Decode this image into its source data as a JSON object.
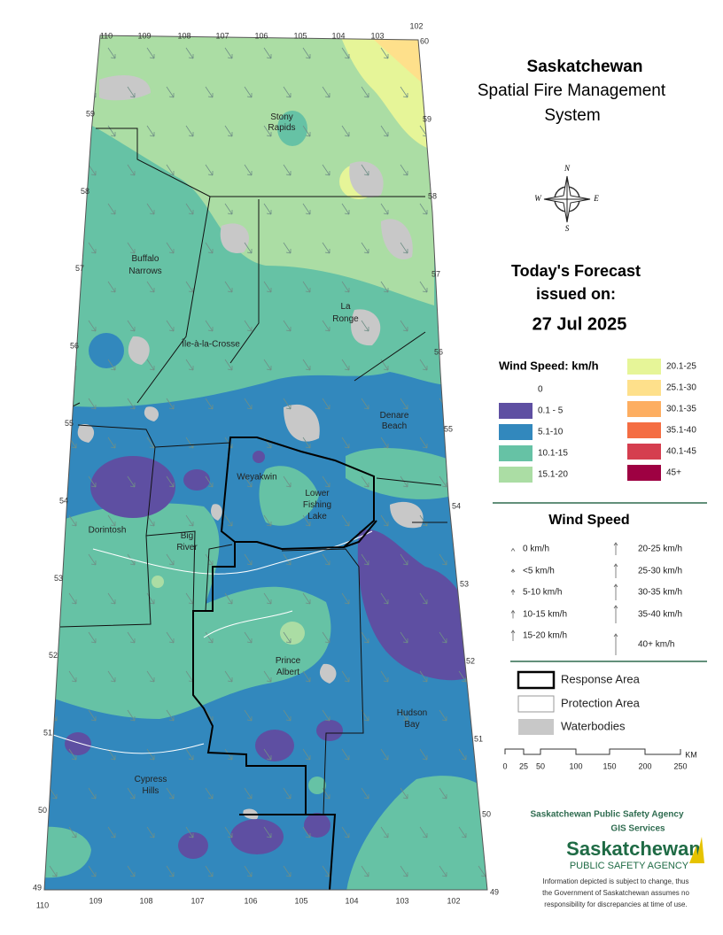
{
  "header": {
    "title": "Saskatchewan",
    "subtitle_lines": [
      "Spatial Fire Management",
      "System"
    ]
  },
  "compass": [
    "N",
    "E",
    "S",
    "W"
  ],
  "forecast": {
    "heading_lines": [
      "Today's Forecast",
      "issued on:"
    ],
    "date": "27 Jul 2025"
  },
  "wind_speed_legend": {
    "title": "Wind Speed: km/h",
    "classes": [
      {
        "label": "0",
        "color": "#ffffff"
      },
      {
        "label": "0.1 - 5",
        "color": "#5e4fa2"
      },
      {
        "label": "5.1-10",
        "color": "#3288bd"
      },
      {
        "label": "10.1-15",
        "color": "#66c2a5"
      },
      {
        "label": "15.1-20",
        "color": "#abdda4"
      },
      {
        "label": "20.1-25",
        "color": "#e6f598"
      },
      {
        "label": "25.1-30",
        "color": "#fee08b"
      },
      {
        "label": "30.1-35",
        "color": "#fdae61"
      },
      {
        "label": "35.1-40",
        "color": "#f46d43"
      },
      {
        "label": "40.1-45",
        "color": "#d53e4f"
      },
      {
        "label": "45+",
        "color": "#9e0142"
      }
    ]
  },
  "wind_arrow_legend": {
    "title": "Wind Speed",
    "items": [
      "0 km/h",
      "<5 km/h",
      "5-10 km/h",
      "10-15 km/h",
      "15-20 km/h",
      "20-25 km/h",
      "25-30 km/h",
      "30-35 km/h",
      "35-40 km/h",
      "40+ km/h"
    ]
  },
  "boundary_legend": {
    "items": [
      "Response Area",
      "Protection Area",
      "Waterbodies"
    ]
  },
  "scale_bar": {
    "labels": [
      "0",
      "25",
      "50",
      "100",
      "150",
      "200",
      "250"
    ],
    "unit": "KM"
  },
  "map": {
    "longitudes_top": [
      "110",
      "109",
      "108",
      "107",
      "106",
      "105",
      "104",
      "103",
      "102"
    ],
    "longitudes_bottom": [
      "110",
      "109",
      "108",
      "107",
      "106",
      "105",
      "104",
      "103",
      "102"
    ],
    "latitudes_left": [
      "59",
      "58",
      "57",
      "56",
      "55",
      "54",
      "53",
      "52",
      "51",
      "50",
      "49"
    ],
    "latitudes_right": [
      "60",
      "59",
      "58",
      "57",
      "56",
      "55",
      "54",
      "53",
      "52",
      "51",
      "50",
      "49"
    ],
    "places": [
      "Stony Rapids",
      "Buffalo Narrows",
      "La Ronge",
      "Île-à-la-Crosse",
      "Denare Beach",
      "Weyakwin",
      "Lower Fishing Lake",
      "Dorintosh",
      "Big River",
      "Prince Albert",
      "Hudson Bay",
      "Cypress Hills"
    ]
  },
  "agency": {
    "name": "Saskatchewan Public Safety Agency",
    "unit": "GIS  Services",
    "logo_name": "Saskatchewan",
    "logo_sub": "PUBLIC SAFETY AGENCY",
    "disclaimer": [
      "Information depicted is subject to change, thus",
      "the Government of Saskatchewan assumes no",
      "responsibility for discrepancies at time of use."
    ]
  }
}
